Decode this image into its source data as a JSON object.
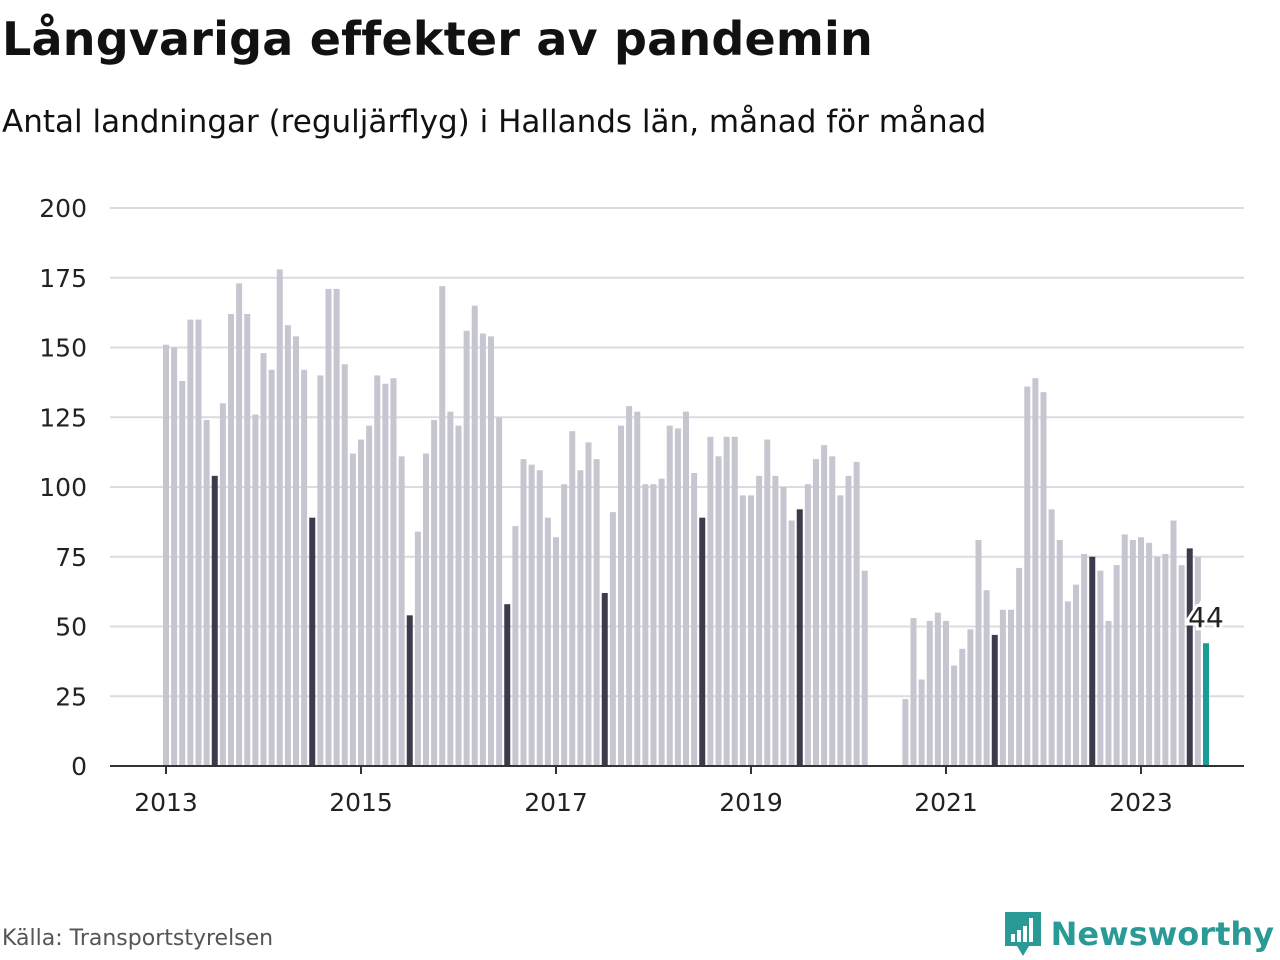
{
  "title": "Långvariga effekter av pandemin",
  "subtitle": "Antal landningar (reguljärflyg) i Hallands län, månad för månad",
  "source": "Källa: Transportstyrelsen",
  "brand": {
    "name": "Newsworthy",
    "logo_icon": "newsworthy-logo-icon",
    "color": "#2a9a96"
  },
  "chart_data": {
    "type": "bar",
    "x_start": "2013-01",
    "x_end": "2023-07",
    "x_tick_labels": [
      "2013",
      "2015",
      "2017",
      "2019",
      "2021",
      "2023"
    ],
    "y_ticks": [
      0,
      25,
      50,
      75,
      100,
      125,
      150,
      175,
      200
    ],
    "ylim": [
      0,
      200
    ],
    "grid": true,
    "colors": {
      "default": "#c6c6d1",
      "july": "#3d3a4b",
      "latest": "#1a9c96"
    },
    "values": [
      151,
      150,
      138,
      160,
      160,
      124,
      104,
      130,
      162,
      173,
      162,
      126,
      148,
      142,
      178,
      158,
      154,
      142,
      89,
      140,
      171,
      171,
      144,
      112,
      117,
      122,
      140,
      137,
      139,
      111,
      54,
      84,
      112,
      124,
      172,
      127,
      122,
      156,
      165,
      155,
      154,
      125,
      58,
      86,
      110,
      108,
      106,
      89,
      82,
      101,
      120,
      106,
      116,
      110,
      62,
      91,
      122,
      129,
      127,
      101,
      101,
      103,
      122,
      121,
      127,
      105,
      89,
      118,
      111,
      118,
      118,
      97,
      97,
      104,
      117,
      104,
      100,
      88,
      92,
      101,
      110,
      115,
      111,
      97,
      104,
      109,
      70,
      0,
      0,
      0,
      0,
      24,
      53,
      31,
      52,
      55,
      52,
      36,
      42,
      49,
      81,
      63,
      47,
      56,
      56,
      71,
      136,
      139,
      134,
      92,
      81,
      59,
      65,
      76,
      75,
      70,
      52,
      72,
      83,
      81,
      82,
      80,
      75,
      76,
      88,
      72,
      78,
      75,
      44
    ],
    "highlight_label": "44"
  }
}
